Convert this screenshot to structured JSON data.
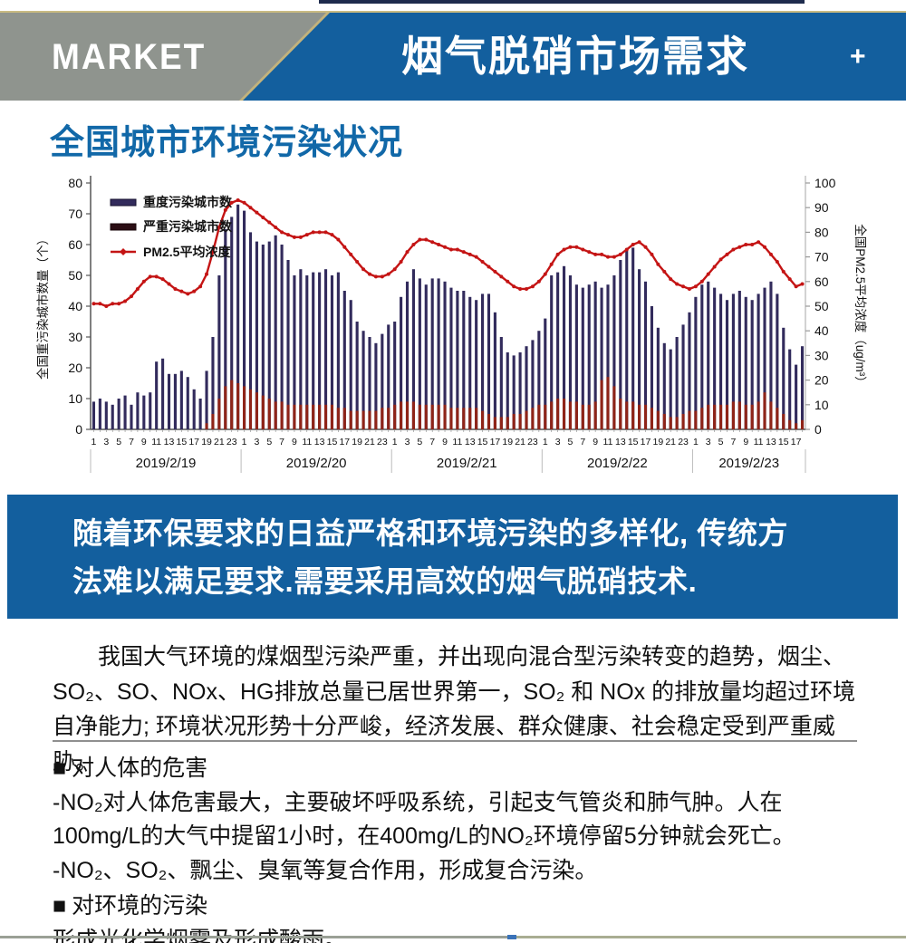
{
  "header": {
    "market_label": "MARKET",
    "title": "烟气脱硝市场需求",
    "plus": "+"
  },
  "section_title": "全国城市环境污染状况",
  "banner": {
    "lines": [
      "随着环保要求的日益严格和环境污染的多样化, 传统方",
      "法难以满足要求.需要采用高效的烟气脱硝技术."
    ]
  },
  "paragraph": "我国大气环境的煤烟型污染严重，并出现向混合型污染转变的趋势，烟尘、SO₂、SO、NOx、HG排放总量已居世界第一，SO₂ 和 NOx 的排放量均超过环境自净能力; 环境状况形势十分严峻，经济发展、群众健康、社会稳定受到严重威胁。",
  "lists": [
    {
      "heading": "对人体的危害",
      "items": [
        "-NO₂对人体危害最大，主要破坏呼吸系统，引起支气管炎和肺气肿。人在100mg/L的大气中提留1小时，在400mg/L的NO₂环境停留5分钟就会死亡。",
        "-NO₂、SO₂、飘尘、臭氧等复合作用，形成复合污染。"
      ]
    },
    {
      "heading": "对环境的污染",
      "items": [
        "形成光化学烟雾及形成酸雨。"
      ]
    }
  ],
  "colors": {
    "header_blue": "#135f9e",
    "header_gray": "#8f948e",
    "navy_bar": "#1e2b4d",
    "tan_line": "#c9bb82",
    "title_blue": "#1168a8"
  },
  "chart_data": {
    "type": "bar",
    "title": "",
    "left_axis": {
      "label": "全国重污染城市数量（个）",
      "min": 0,
      "max": 80,
      "step": 10
    },
    "right_axis": {
      "label": "全国PM2.5平均浓度（ug/m³）",
      "min": 0,
      "max": 100,
      "step": 10
    },
    "days": [
      {
        "label": "2019/2/19",
        "hours": 24
      },
      {
        "label": "2019/2/20",
        "hours": 24
      },
      {
        "label": "2019/2/21",
        "hours": 24
      },
      {
        "label": "2019/2/22",
        "hours": 24
      },
      {
        "label": "2019/2/23",
        "hours": 18
      }
    ],
    "hour_tick_interval": 2,
    "legend_position": "top-left-inside",
    "grid": false,
    "series": [
      {
        "name": "重度污染城市数",
        "type": "bar",
        "axis": "left",
        "color": "#322b5c",
        "values": [
          9,
          10,
          9,
          8,
          10,
          11,
          8,
          12,
          11,
          12,
          22,
          23,
          18,
          18,
          19,
          17,
          13,
          10,
          19,
          30,
          50,
          65,
          69,
          73,
          71,
          64,
          61,
          60,
          61,
          63,
          60,
          55,
          50,
          52,
          50,
          51,
          51,
          52,
          50,
          51,
          45,
          42,
          35,
          32,
          30,
          28,
          31,
          34,
          35,
          43,
          48,
          52,
          49,
          47,
          49,
          49,
          48,
          46,
          45,
          45,
          43,
          42,
          44,
          44,
          38,
          30,
          25,
          24,
          25,
          27,
          29,
          32,
          36,
          50,
          51,
          53,
          50,
          47,
          46,
          47,
          48,
          46,
          47,
          50,
          55,
          58,
          59,
          52,
          48,
          40,
          33,
          28,
          26,
          30,
          34,
          38,
          43,
          47,
          48,
          46,
          44,
          42,
          44,
          45,
          43,
          42,
          44,
          46,
          48,
          44,
          33,
          26,
          21,
          27
        ]
      },
      {
        "name": "严重污染城市数",
        "type": "bar",
        "axis": "left",
        "color": "#8f2418",
        "values": [
          0,
          0,
          0,
          0,
          0,
          0,
          0,
          0,
          0,
          0,
          0,
          0,
          0,
          0,
          0,
          0,
          0,
          0,
          2,
          5,
          10,
          14,
          16,
          15,
          14,
          13,
          12,
          11,
          10,
          9,
          9,
          8,
          8,
          8,
          8,
          8,
          8,
          8,
          8,
          7,
          7,
          6,
          6,
          6,
          6,
          6,
          7,
          7,
          8,
          9,
          9,
          9,
          8,
          8,
          8,
          8,
          8,
          7,
          7,
          7,
          7,
          7,
          6,
          5,
          4,
          4,
          4,
          5,
          5,
          6,
          7,
          8,
          8,
          9,
          10,
          10,
          9,
          9,
          8,
          8,
          9,
          16,
          17,
          14,
          10,
          9,
          9,
          8,
          8,
          7,
          6,
          5,
          4,
          4,
          5,
          6,
          6,
          7,
          8,
          8,
          8,
          8,
          9,
          9,
          8,
          8,
          9,
          12,
          9,
          7,
          5,
          3,
          2,
          3
        ]
      },
      {
        "name": "PM2.5平均浓度",
        "type": "line",
        "axis": "right",
        "color": "#c41414",
        "values": [
          51,
          51,
          50,
          51,
          51,
          52,
          54,
          57,
          60,
          62,
          62,
          61,
          59,
          57,
          56,
          55,
          56,
          58,
          63,
          72,
          82,
          89,
          92,
          93,
          92,
          90,
          88,
          86,
          84,
          82,
          80,
          79,
          78,
          78,
          79,
          80,
          80,
          80,
          79,
          77,
          74,
          71,
          68,
          65,
          63,
          62,
          62,
          63,
          65,
          68,
          72,
          75,
          77,
          77,
          76,
          75,
          74,
          73,
          73,
          72,
          71,
          70,
          68,
          66,
          64,
          62,
          60,
          58,
          57,
          57,
          58,
          60,
          63,
          67,
          71,
          73,
          74,
          74,
          73,
          72,
          71,
          71,
          70,
          70,
          71,
          73,
          75,
          76,
          74,
          71,
          67,
          64,
          61,
          59,
          58,
          57,
          58,
          60,
          63,
          66,
          69,
          71,
          73,
          74,
          75,
          75,
          76,
          74,
          71,
          68,
          64,
          61,
          58,
          59
        ]
      }
    ]
  }
}
